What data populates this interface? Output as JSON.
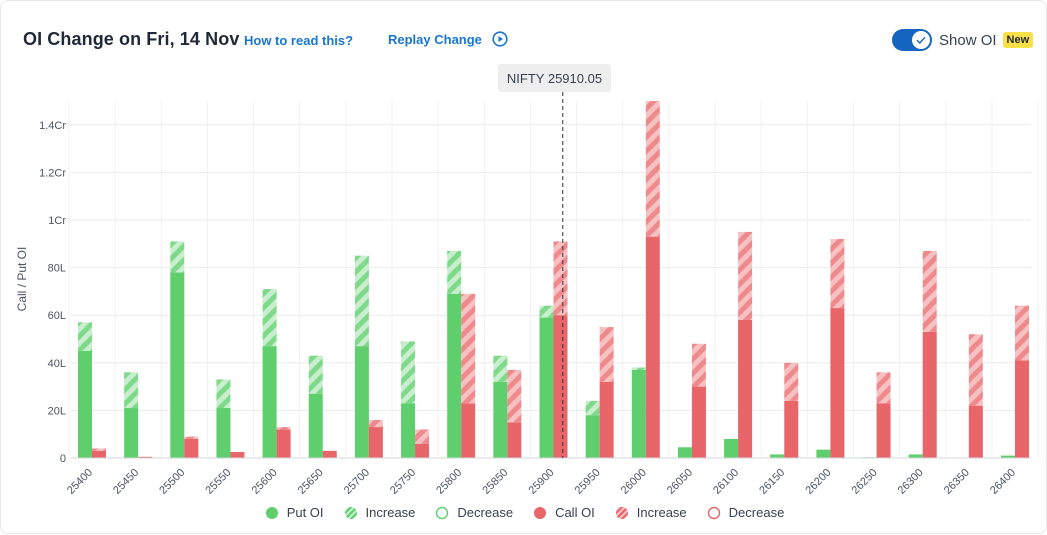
{
  "header": {
    "title": "OI Change on Fri, 14 Nov",
    "how_link": "How to read this?",
    "replay_label": "Replay Change",
    "toggle_label": "Show OI",
    "toggle_on": true,
    "new_badge": "New"
  },
  "spot_label": "NIFTY 25910.05",
  "colors": {
    "put": "#5fcf6d",
    "put_increase": "#a8e4af",
    "call": "#e8666a",
    "call_increase": "#f4a4a6",
    "accent": "#1976d2",
    "toggle": "#1565c0"
  },
  "legend": [
    {
      "label": "Put OI",
      "kind": "put-solid"
    },
    {
      "label": "Increase",
      "kind": "put-hatch"
    },
    {
      "label": "Decrease",
      "kind": "put-outline"
    },
    {
      "label": "Call OI",
      "kind": "call-solid"
    },
    {
      "label": "Increase",
      "kind": "call-hatch"
    },
    {
      "label": "Decrease",
      "kind": "call-outline"
    }
  ],
  "chart_data": {
    "type": "bar",
    "ylabel": "Call / Put OI",
    "ylim": [
      0,
      15000000
    ],
    "yticks": [
      0,
      2000000,
      4000000,
      6000000,
      8000000,
      10000000,
      12000000,
      14000000
    ],
    "ytick_labels": [
      "0",
      "20L",
      "40L",
      "60L",
      "80L",
      "1Cr",
      "1.2Cr",
      "1.4Cr"
    ],
    "spot_strike": 25910.05,
    "categories": [
      "25400",
      "25450",
      "25500",
      "25550",
      "25600",
      "25650",
      "25700",
      "25750",
      "25800",
      "25850",
      "25900",
      "25950",
      "26000",
      "26050",
      "26100",
      "26150",
      "26200",
      "26250",
      "26300",
      "26350",
      "26400"
    ],
    "series": [
      {
        "name": "Put OI",
        "base": [
          4500000,
          2100000,
          7800000,
          2100000,
          4700000,
          2700000,
          4700000,
          2300000,
          6900000,
          3200000,
          5900000,
          1800000,
          3700000,
          450000,
          800000,
          150000,
          350000,
          30000,
          150000,
          20000,
          100000
        ],
        "increase": [
          1200000,
          1500000,
          1300000,
          1200000,
          2400000,
          1600000,
          3800000,
          2600000,
          1800000,
          1100000,
          500000,
          600000,
          100000,
          0,
          0,
          0,
          0,
          0,
          0,
          0,
          0
        ],
        "decrease": [
          0,
          0,
          0,
          0,
          0,
          0,
          0,
          0,
          0,
          0,
          0,
          0,
          0,
          0,
          0,
          0,
          0,
          0,
          0,
          0,
          0
        ]
      },
      {
        "name": "Call OI",
        "base": [
          300000,
          50000,
          800000,
          250000,
          1200000,
          300000,
          1300000,
          600000,
          2300000,
          1500000,
          6000000,
          3200000,
          9300000,
          3000000,
          5800000,
          2400000,
          6300000,
          2300000,
          5300000,
          2200000,
          4100000
        ],
        "increase": [
          100000,
          0,
          100000,
          0,
          100000,
          0,
          300000,
          600000,
          4600000,
          2200000,
          3100000,
          2300000,
          5700000,
          1800000,
          3700000,
          1600000,
          2900000,
          1300000,
          3400000,
          3000000,
          2300000
        ],
        "decrease": [
          0,
          0,
          0,
          0,
          0,
          0,
          0,
          0,
          0,
          0,
          0,
          0,
          0,
          0,
          0,
          0,
          0,
          0,
          0,
          0,
          0
        ]
      }
    ]
  }
}
